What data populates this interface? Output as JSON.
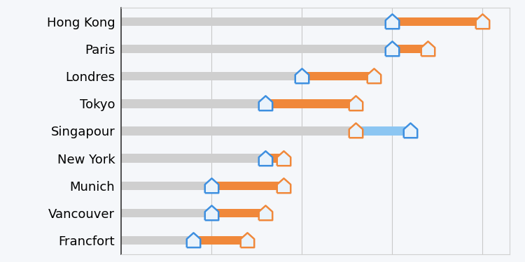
{
  "chart_data": {
    "type": "dumbbell",
    "orientation": "horizontal",
    "categories": [
      "Hong Kong",
      "Paris",
      "Londres",
      "Tokyo",
      "Singapour",
      "New York",
      "Munich",
      "Vancouver",
      "Francfort"
    ],
    "series": [
      {
        "color": "#3d8fe0",
        "marker": "house",
        "values": [
          30,
          30,
          20,
          16,
          32,
          16,
          10,
          10,
          8
        ]
      },
      {
        "color": "#f0883a",
        "marker": "house",
        "values": [
          40,
          34,
          28,
          26,
          26,
          18,
          18,
          16,
          14
        ]
      }
    ],
    "xlim": [
      0,
      43
    ],
    "xticks": [
      10,
      20,
      30,
      40
    ],
    "grid": true,
    "tick_labels": "y"
  }
}
